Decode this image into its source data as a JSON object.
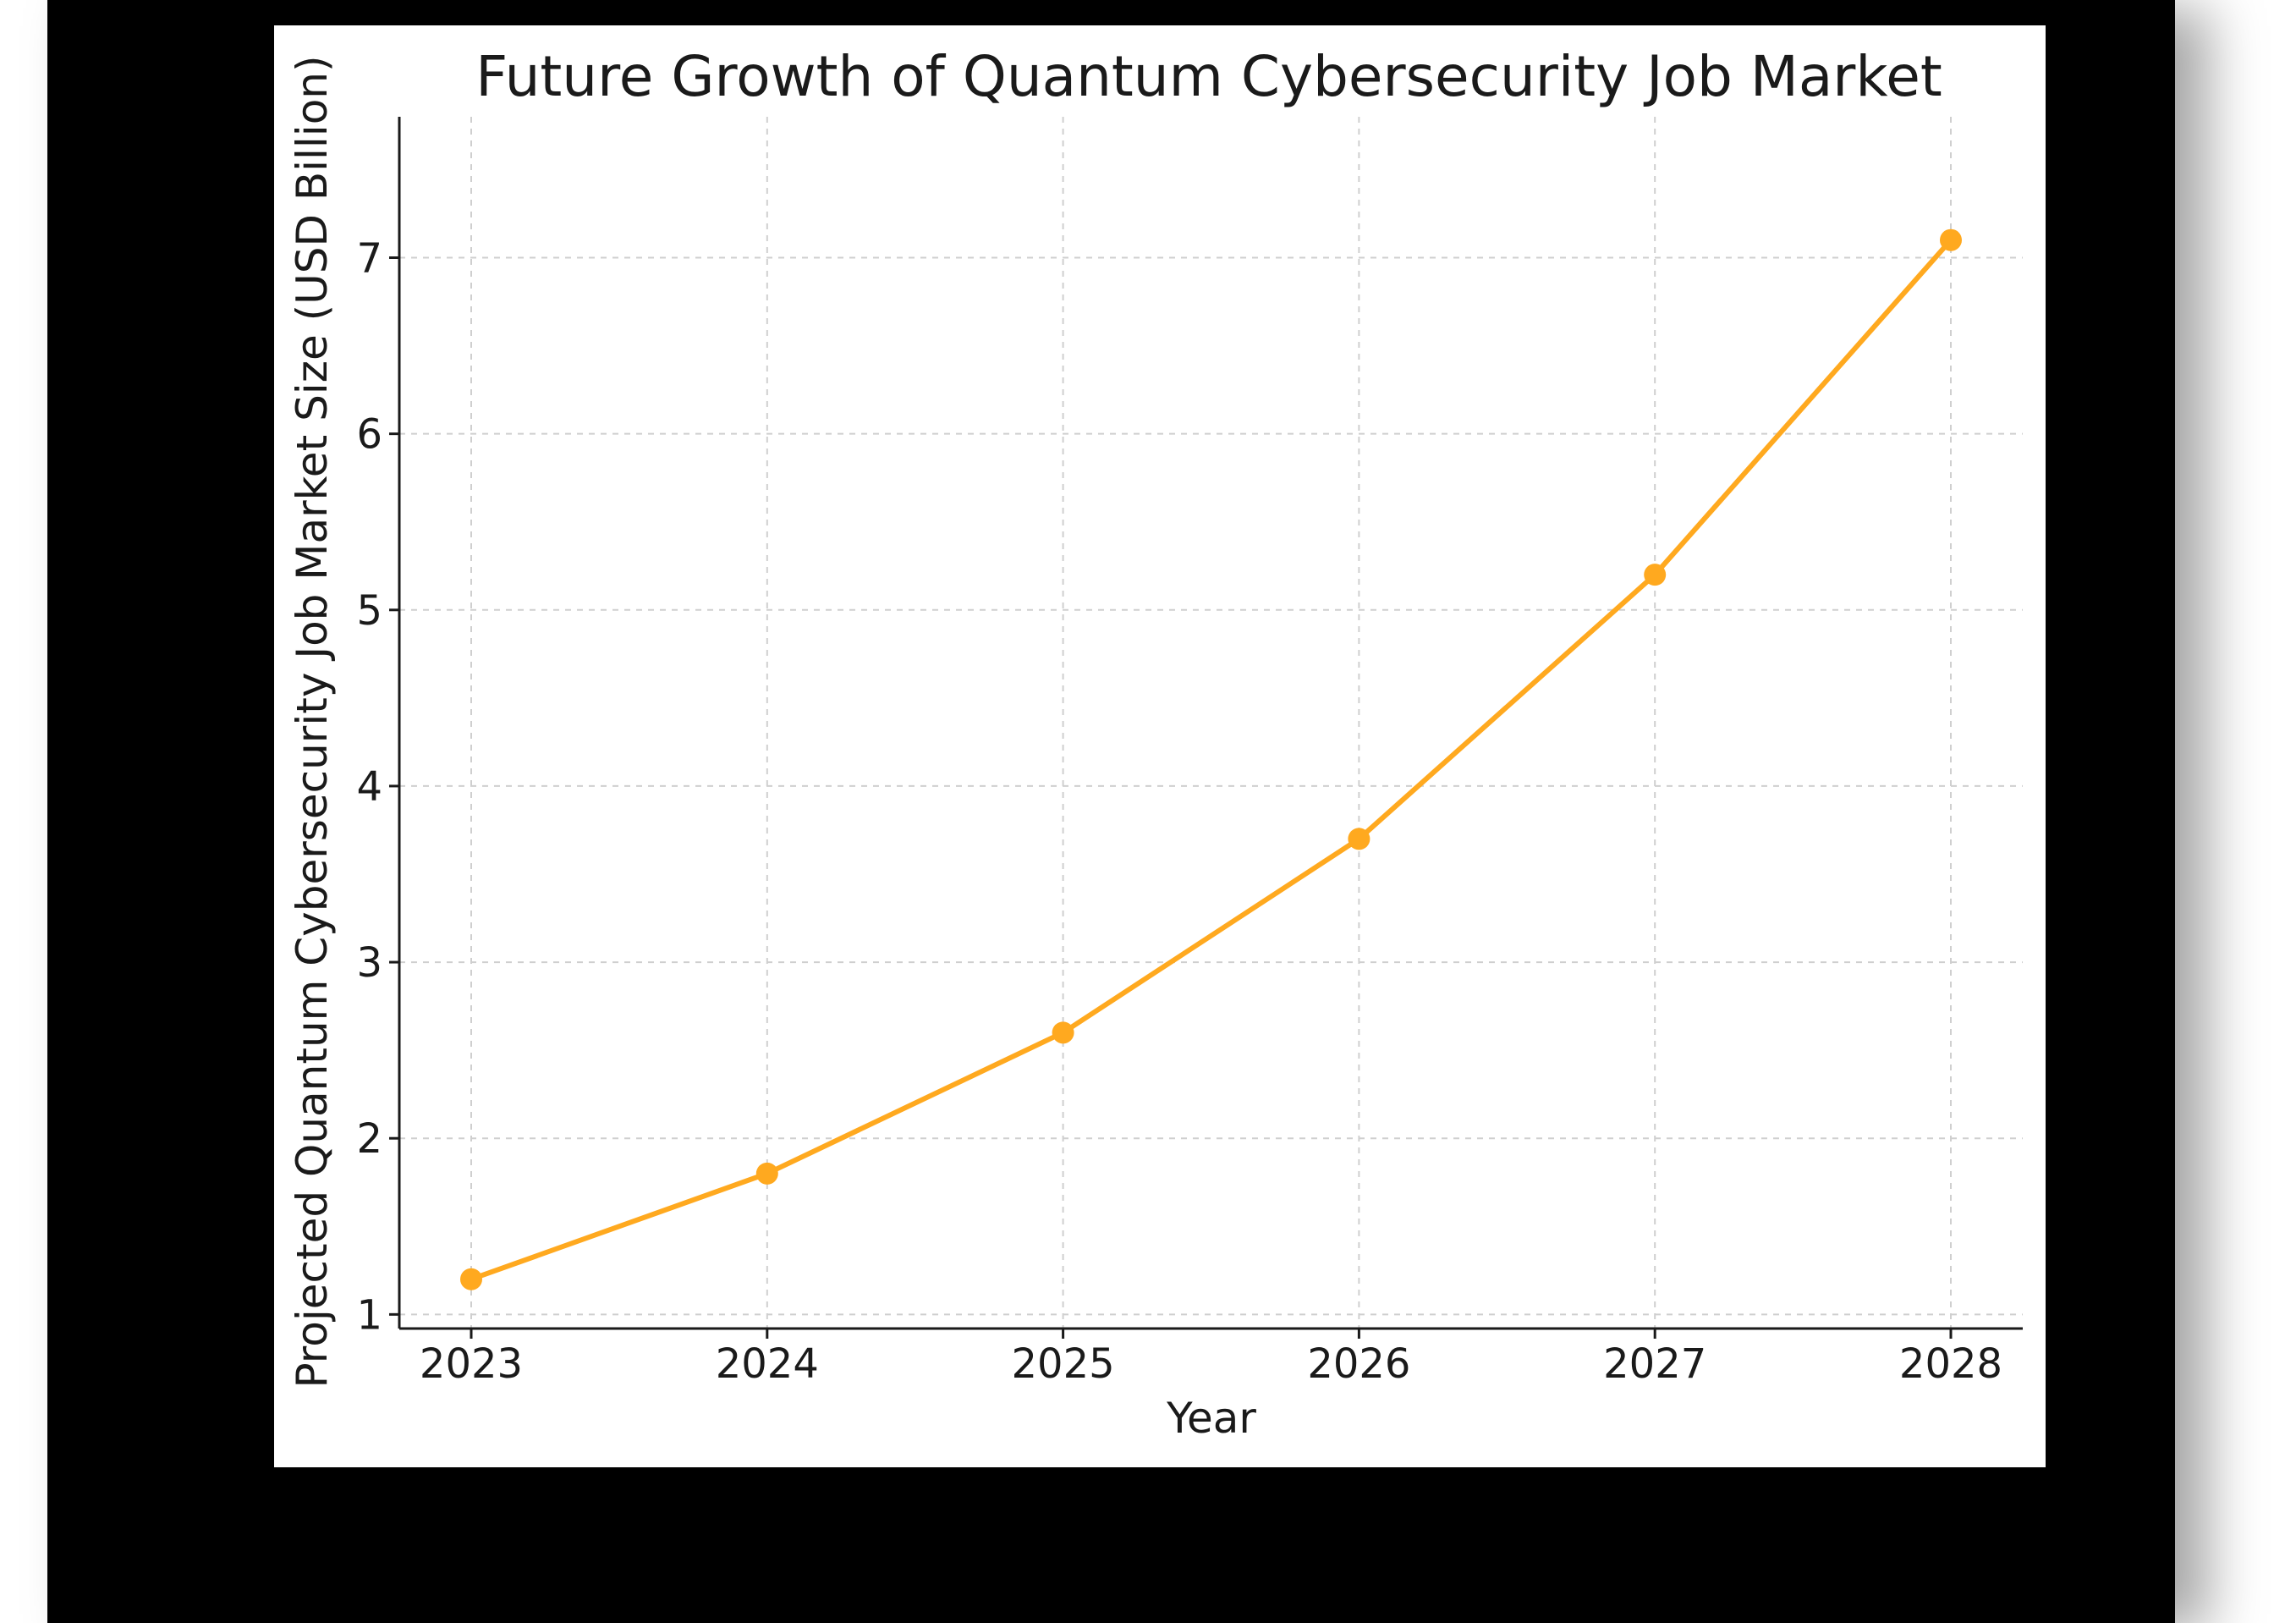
{
  "chart_data": {
    "type": "line",
    "title": "Future Growth of Quantum Cybersecurity Job Market",
    "xlabel": "Year",
    "ylabel": "Projected Quantum Cybersecurity Job Market Size (USD Billion)",
    "x": [
      "2023",
      "2024",
      "2025",
      "2026",
      "2027",
      "2028"
    ],
    "series": [
      {
        "values": [
          1.2,
          1.8,
          2.6,
          3.7,
          5.2,
          7.1
        ],
        "color": "#FFA91F"
      }
    ],
    "yticks": [
      1,
      2,
      3,
      4,
      5,
      6,
      7
    ],
    "ylim": [
      0.92,
      7.8
    ],
    "grid": true,
    "legend": "none"
  }
}
